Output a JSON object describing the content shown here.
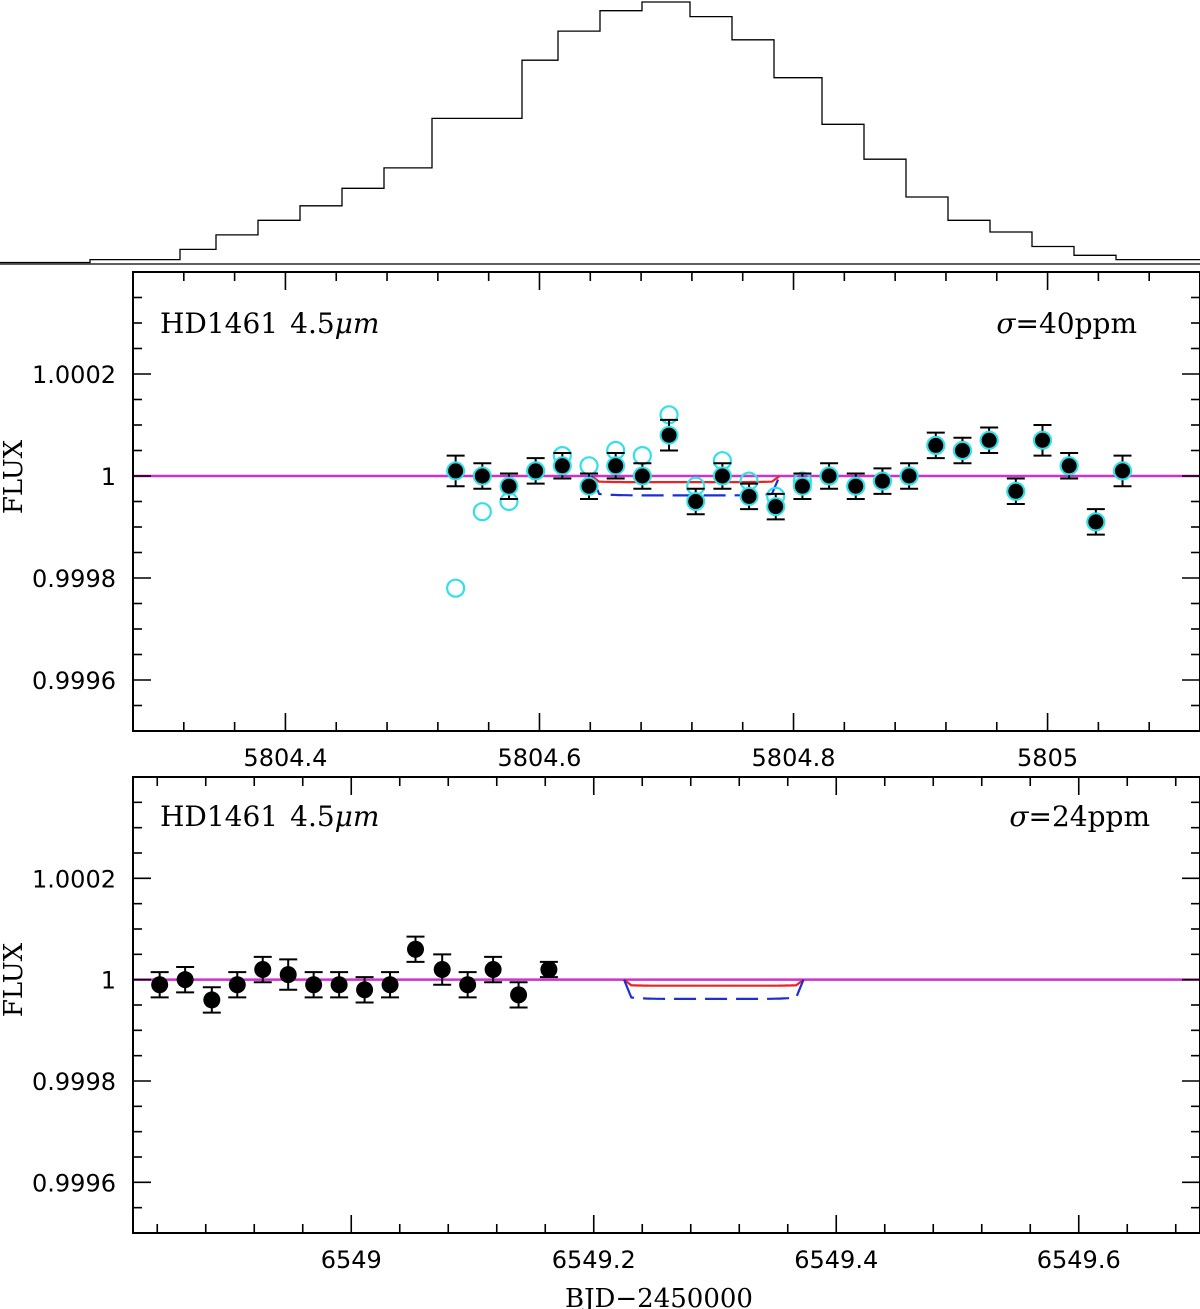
{
  "chart_data": [
    {
      "type": "histogram",
      "description_label": "phase-coverage histogram (unlabeled)",
      "x_edges": [
        0.0,
        0.075,
        0.15,
        0.18,
        0.215,
        0.25,
        0.285,
        0.32,
        0.36,
        0.435,
        0.465,
        0.5,
        0.535,
        0.575,
        0.61,
        0.645,
        0.685,
        0.72,
        0.755,
        0.79,
        0.825,
        0.86,
        0.895,
        0.93,
        1.0
      ],
      "counts": [
        0.5,
        1.5,
        5,
        10,
        15,
        20,
        26,
        33,
        50,
        70,
        80,
        87,
        90,
        85,
        77,
        64,
        48,
        36,
        23,
        15,
        11,
        6,
        3,
        1.5
      ]
    },
    {
      "type": "scatter",
      "label_star": "HD1461",
      "label_band": "4.5",
      "label_unit": "μm",
      "sigma_symbol": "σ",
      "sigma_value": "=40ppm",
      "ylabel": "FLUX",
      "xlabel": "",
      "xlim": [
        5804.28,
        5805.12
      ],
      "ylim": [
        0.9995,
        1.0004
      ],
      "x_ticks": [
        5804.4,
        5804.6,
        5804.8,
        5805
      ],
      "x_tick_labels": [
        "5804.4",
        "5804.6",
        "5804.8",
        "5805"
      ],
      "y_ticks": [
        0.9996,
        0.9998,
        1,
        1.0002
      ],
      "y_tick_labels": [
        "0.9996",
        "0.9998",
        "1",
        "1.0002"
      ],
      "baseline": 1.0,
      "baseline_color": "#cc33cc",
      "binned_points": {
        "color": "#000000",
        "x": [
          5804.534,
          5804.555,
          5804.576,
          5804.597,
          5804.618,
          5804.639,
          5804.66,
          5804.681,
          5804.702,
          5804.723,
          5804.744,
          5804.765,
          5804.786,
          5804.807,
          5804.828,
          5804.849,
          5804.87,
          5804.891,
          5804.912,
          5804.933,
          5804.954,
          5804.975,
          5804.996,
          5805.017,
          5805.038,
          5805.059
        ],
        "y": [
          1.00001,
          1.0,
          0.99998,
          1.00001,
          1.00002,
          0.99998,
          1.00002,
          1.0,
          1.00008,
          0.99995,
          1.0,
          0.99996,
          0.99994,
          0.99998,
          1.0,
          0.99998,
          0.99999,
          1.0,
          1.00006,
          1.00005,
          1.00007,
          0.99997,
          1.00007,
          1.00002,
          0.99991,
          1.00001
        ],
        "err": [
          3e-05,
          2.5e-05,
          2.5e-05,
          2.5e-05,
          2.5e-05,
          2.5e-05,
          2.5e-05,
          2.5e-05,
          3e-05,
          2.5e-05,
          2.5e-05,
          2.5e-05,
          2.5e-05,
          2.5e-05,
          2.5e-05,
          2.5e-05,
          2.5e-05,
          2.5e-05,
          2.5e-05,
          2.5e-05,
          2.5e-05,
          2.5e-05,
          3e-05,
          2.5e-05,
          2.5e-05,
          3e-05
        ]
      },
      "uncorrected_points": {
        "color": "#33e0e8",
        "x": [
          5804.534,
          5804.555,
          5804.576,
          5804.597,
          5804.618,
          5804.639,
          5804.66,
          5804.681,
          5804.702,
          5804.723,
          5804.744,
          5804.765,
          5804.786,
          5804.807,
          5804.828,
          5804.849,
          5804.87,
          5804.891,
          5804.912,
          5804.933,
          5804.954,
          5804.975,
          5804.996,
          5805.017,
          5805.038,
          5805.059
        ],
        "y": [
          0.99978,
          0.99993,
          0.99995,
          1.00001,
          1.00004,
          1.00002,
          1.00005,
          1.00004,
          1.00012,
          0.99998,
          1.00003,
          0.99999,
          0.99996,
          0.99999,
          1.0,
          0.99998,
          0.99999,
          1.0,
          1.00006,
          1.00005,
          1.00007,
          0.99997,
          1.00007,
          1.00002,
          0.99991,
          1.00001
        ]
      },
      "transit_models": [
        {
          "name": "shallow",
          "color": "#ee2222",
          "dashed": false,
          "t_start": 5804.641,
          "t_end": 5804.789,
          "depth": 1.2e-05
        },
        {
          "name": "deep",
          "color": "#1a2fd6",
          "dashed": true,
          "t_start": 5804.641,
          "t_end": 5804.789,
          "depth": 3.8e-05
        }
      ]
    },
    {
      "type": "scatter",
      "label_star": "HD1461",
      "label_band": "4.5",
      "label_unit": "μm",
      "sigma_symbol": "σ",
      "sigma_value": "=24ppm",
      "ylabel": "FLUX",
      "xlabel": "BJD−2450000",
      "xlim": [
        6548.82,
        6549.7
      ],
      "ylim": [
        0.9995,
        1.0004
      ],
      "x_ticks": [
        6549,
        6549.2,
        6549.4,
        6549.6
      ],
      "x_tick_labels": [
        "6549",
        "6549.2",
        "6549.4",
        "6549.6"
      ],
      "y_ticks": [
        0.9996,
        0.9998,
        1,
        1.0002
      ],
      "y_tick_labels": [
        "0.9996",
        "0.9998",
        "1",
        "1.0002"
      ],
      "baseline": 1.0,
      "baseline_color": "#cc33cc",
      "binned_points": {
        "color": "#000000",
        "x": [
          6548.842,
          6548.863,
          6548.885,
          6548.906,
          6548.927,
          6548.948,
          6548.969,
          6548.99,
          6549.011,
          6549.032,
          6549.053,
          6549.075,
          6549.096,
          6549.117,
          6549.138,
          6549.163
        ],
        "y": [
          0.99999,
          1.0,
          0.99996,
          0.99999,
          1.00002,
          1.00001,
          0.99999,
          0.99999,
          0.99998,
          0.99999,
          1.00006,
          1.00002,
          0.99999,
          1.00002,
          0.99997,
          1.00002
        ],
        "err": [
          2.5e-05,
          2.5e-05,
          2.5e-05,
          2.5e-05,
          2.5e-05,
          3e-05,
          2.5e-05,
          2.5e-05,
          2.5e-05,
          2.5e-05,
          2.5e-05,
          3e-05,
          2.5e-05,
          2.5e-05,
          2.5e-05,
          1.5e-05
        ]
      },
      "uncorrected_points": null,
      "transit_models": [
        {
          "name": "shallow",
          "color": "#ee2222",
          "dashed": false,
          "t_start": 6549.225,
          "t_end": 6549.373,
          "depth": 1.2e-05
        },
        {
          "name": "deep",
          "color": "#1a2fd6",
          "dashed": true,
          "t_start": 6549.225,
          "t_end": 6549.373,
          "depth": 3.8e-05
        }
      ]
    }
  ]
}
